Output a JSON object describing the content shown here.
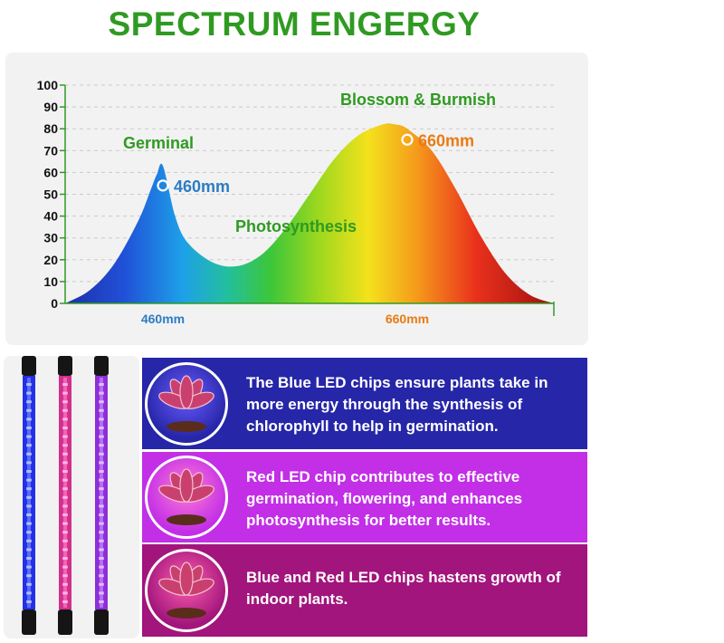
{
  "title": "SPECTRUM ENGERGY",
  "chart_data": {
    "type": "area",
    "title": "",
    "xlabel": "",
    "ylabel": "",
    "ylim": [
      0,
      100
    ],
    "yticks": [
      0,
      10,
      20,
      30,
      40,
      50,
      60,
      70,
      80,
      90,
      100
    ],
    "x_tick_labels": [
      "460mm",
      "660mm"
    ],
    "grid": true,
    "grid_style": "dashed-horizontal",
    "x_range_nm": [
      380,
      780
    ],
    "series": [
      {
        "x": [
          380,
          400,
          420,
          440,
          450,
          455,
          460,
          470,
          480,
          500,
          520,
          540,
          560,
          580,
          600,
          620,
          640,
          650,
          660,
          680,
          700,
          720,
          740,
          760,
          780
        ],
        "y": [
          0,
          6,
          18,
          38,
          52,
          59,
          63,
          40,
          28,
          19,
          17,
          22,
          34,
          50,
          66,
          77,
          82,
          82,
          80,
          70,
          52,
          31,
          14,
          4,
          0
        ]
      }
    ],
    "annotations": [
      {
        "label": "Germinal",
        "color": "#2f9a22"
      },
      {
        "label": "Photosynthesis",
        "color": "#2f9a22"
      },
      {
        "label": "Blossom & Burmish",
        "color": "#2f9a22"
      },
      {
        "label": "460mm",
        "x": 460,
        "y": 54,
        "color": "#2b7cc4"
      },
      {
        "label": "660mm",
        "x": 660,
        "y": 75,
        "color": "#ea7a14"
      }
    ],
    "colors": {
      "axis": "#2f9a22",
      "tick_text": "#111111",
      "label_460": "#2b7cc4",
      "label_660": "#ea7a14"
    }
  },
  "rows": [
    {
      "text": "The Blue LED chips ensure plants take in more energy through the synthesis of chlorophyll to help in germination.",
      "bg": "#2626a8",
      "glow": "#6a5cff"
    },
    {
      "text": "Red LED chip contributes to effective germination, flowering, and enhances photosynthesis for better results.",
      "bg": "#c22fe6",
      "glow": "#ff7ad6"
    },
    {
      "text": "Blue and Red LED chips hastens growth of indoor plants.",
      "bg": "#a2157c",
      "glow": "#ff5fae"
    }
  ],
  "tubes": [
    {
      "color": "#2230e6",
      "glow": "#6f82ff"
    },
    {
      "color": "#d22f8e",
      "glow": "#ff74c2"
    },
    {
      "color": "#8e2ed8",
      "glow": "#c483ff"
    }
  ]
}
